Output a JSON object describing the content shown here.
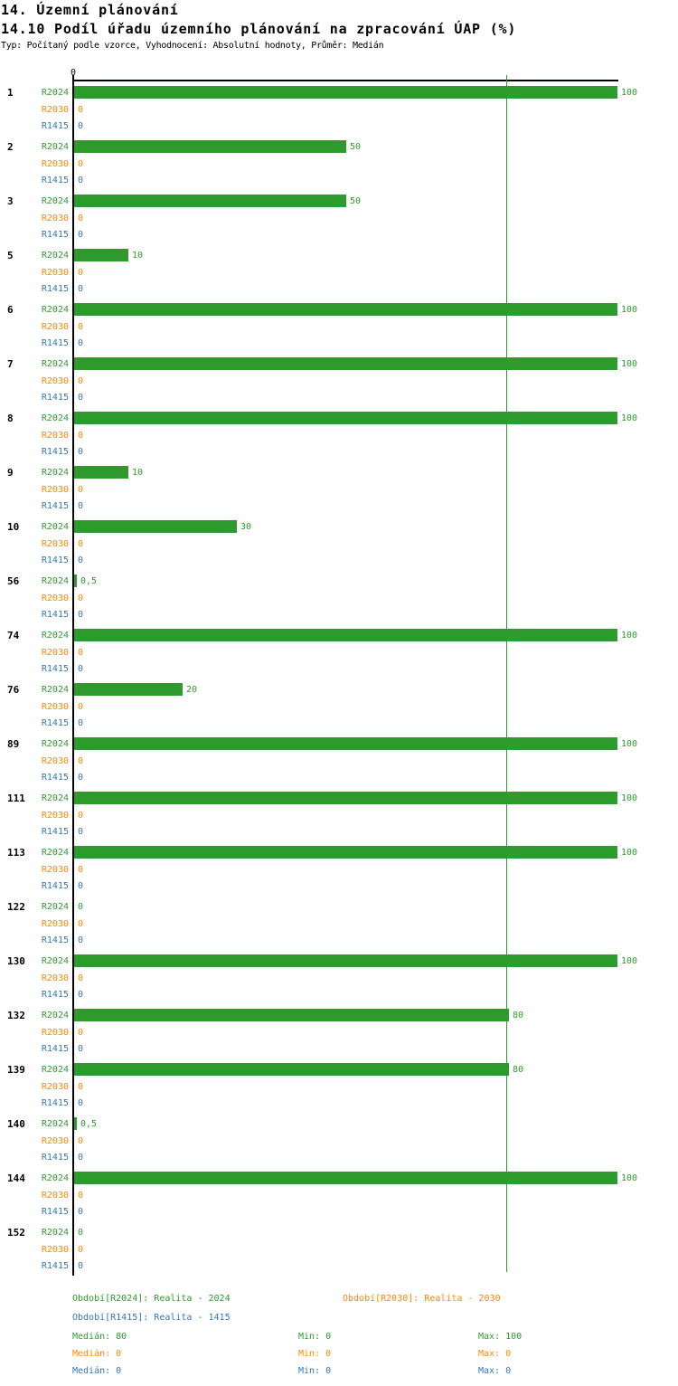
{
  "header": {
    "title": "14. Územní plánování",
    "subtitle": "14.10 Podíl úřadu územního plánování na zpracování ÚAP (%)",
    "meta": "Typ: Počítaný podle vzorce, Vyhodnocení: Absolutní hodnoty, Průměr: Medián"
  },
  "axis": {
    "zero_label": "0"
  },
  "colors": {
    "r2024": "#2E9B2E",
    "r2030": "#FF8800",
    "r1415": "#3377BB",
    "axis": "#000000",
    "median_line": "#2E9B2E"
  },
  "chart_data": {
    "type": "bar",
    "orientation": "horizontal",
    "title": "14.10 Podíl úřadu územního plánování na zpracování ÚAP (%)",
    "xlabel": "",
    "ylabel": "",
    "xlim": [
      0,
      100
    ],
    "grid": "median line at 80 only",
    "legend_position": "bottom",
    "categories": [
      "1",
      "2",
      "3",
      "5",
      "6",
      "7",
      "8",
      "9",
      "10",
      "56",
      "74",
      "76",
      "89",
      "111",
      "113",
      "122",
      "130",
      "132",
      "139",
      "140",
      "144",
      "152"
    ],
    "series": [
      {
        "name": "R2024",
        "color": "#2E9B2E",
        "values": [
          100,
          50,
          50,
          10,
          100,
          100,
          100,
          10,
          30,
          0.5,
          100,
          20,
          100,
          100,
          100,
          0,
          100,
          80,
          80,
          0.5,
          100,
          0
        ],
        "display": [
          "100",
          "50",
          "50",
          "10",
          "100",
          "100",
          "100",
          "10",
          "30",
          "0,5",
          "100",
          "20",
          "100",
          "100",
          "100",
          "0",
          "100",
          "80",
          "80",
          "0,5",
          "100",
          "0"
        ]
      },
      {
        "name": "R2030",
        "color": "#FF8800",
        "values": [
          0,
          0,
          0,
          0,
          0,
          0,
          0,
          0,
          0,
          0,
          0,
          0,
          0,
          0,
          0,
          0,
          0,
          0,
          0,
          0,
          0,
          0
        ],
        "display": [
          "0",
          "0",
          "0",
          "0",
          "0",
          "0",
          "0",
          "0",
          "0",
          "0",
          "0",
          "0",
          "0",
          "0",
          "0",
          "0",
          "0",
          "0",
          "0",
          "0",
          "0",
          "0"
        ]
      },
      {
        "name": "R1415",
        "color": "#3377BB",
        "values": [
          0,
          0,
          0,
          0,
          0,
          0,
          0,
          0,
          0,
          0,
          0,
          0,
          0,
          0,
          0,
          0,
          0,
          0,
          0,
          0,
          0,
          0
        ],
        "display": [
          "0",
          "0",
          "0",
          "0",
          "0",
          "0",
          "0",
          "0",
          "0",
          "0",
          "0",
          "0",
          "0",
          "0",
          "0",
          "0",
          "0",
          "0",
          "0",
          "0",
          "0",
          "0"
        ]
      }
    ],
    "median_line": {
      "series": "R2024",
      "value": 80
    }
  },
  "legend": {
    "items": [
      {
        "key": "R2024",
        "label": "Období[R2024]: Realita - 2024",
        "color": "#2E9B2E",
        "median": "Medián: 80",
        "min": "Min: 0",
        "max": "Max: 100"
      },
      {
        "key": "R2030",
        "label": "Období[R2030]: Realita - 2030",
        "color": "#FF8800",
        "median": "Medián: 0",
        "min": "Min: 0",
        "max": "Max: 0"
      },
      {
        "key": "R1415",
        "label": "Období[R1415]: Realita - 1415",
        "color": "#3377BB",
        "median": "Medián: 0",
        "min": "Min: 0",
        "max": "Max: 0"
      }
    ]
  }
}
